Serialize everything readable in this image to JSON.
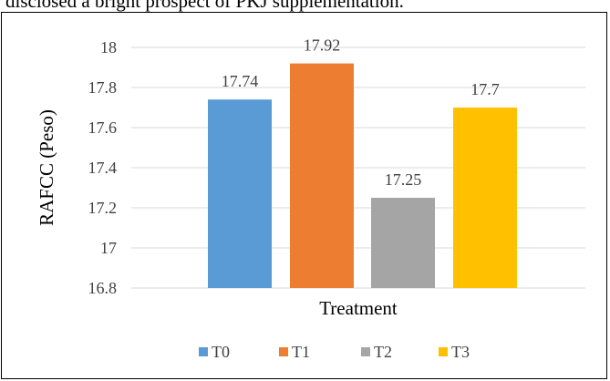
{
  "page": {
    "top_text": "disclosed a bright prospect of PKJ supplementation."
  },
  "chart_data": {
    "type": "bar",
    "categories": [
      "T0",
      "T1",
      "T2",
      "T3"
    ],
    "values": [
      17.74,
      17.92,
      17.25,
      17.7
    ],
    "data_labels": [
      "17.74",
      "17.92",
      "17.25",
      "17.7"
    ],
    "colors": [
      "#5B9BD5",
      "#ED7D31",
      "#A5A5A5",
      "#FFC000"
    ],
    "title": "",
    "xlabel": "Treatment",
    "ylabel": "RAFCC (Peso)",
    "ylim": [
      16.8,
      18
    ],
    "yticks": [
      16.8,
      17,
      17.2,
      17.4,
      17.6,
      17.8,
      18
    ],
    "ytick_labels": [
      "16.8",
      "17",
      "17.2",
      "17.4",
      "17.6",
      "17.8",
      "18"
    ],
    "grid": true,
    "legend": {
      "position": "bottom",
      "entries": [
        "T0",
        "T1",
        "T2",
        "T3"
      ]
    }
  }
}
